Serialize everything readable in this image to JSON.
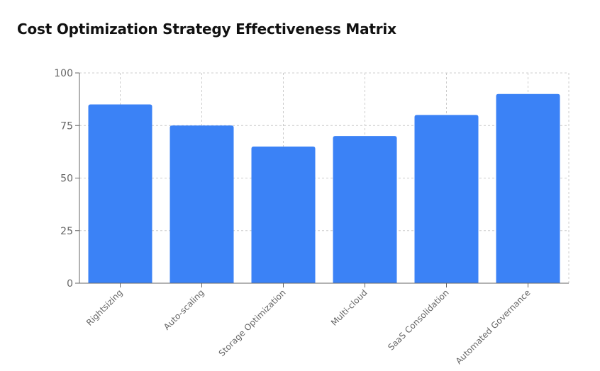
{
  "chart_data": {
    "type": "bar",
    "title": "Cost Optimization Strategy Effectiveness Matrix",
    "categories": [
      "Rightsizing",
      "Auto-scaling",
      "Storage Optimization",
      "Multi-cloud",
      "SaaS Consolidation",
      "Automated Governance"
    ],
    "values": [
      85,
      75,
      65,
      70,
      80,
      90
    ],
    "xlabel": "",
    "ylabel": "",
    "ylim": [
      0,
      100
    ],
    "yticks": [
      0,
      25,
      50,
      75,
      100
    ],
    "grid": true,
    "legend": "none",
    "bar_color": "#3b82f6",
    "grid_color": "#cccccc",
    "axis_color": "#666666"
  }
}
